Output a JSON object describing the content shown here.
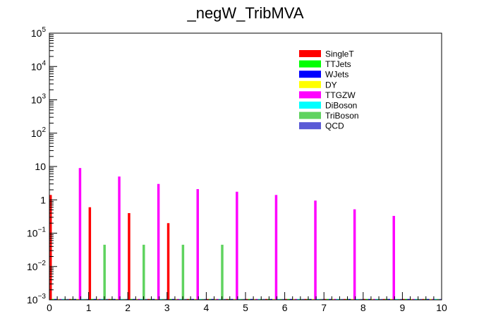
{
  "chart_data": {
    "type": "bar",
    "title": "_negW_TribMVA",
    "xlabel": "",
    "ylabel": "",
    "xlim": [
      0,
      10
    ],
    "ylim": [
      0.001,
      100000
    ],
    "yscale": "log",
    "grid": false,
    "legend_position": "top-right",
    "x_ticks": [
      "0",
      "1",
      "2",
      "3",
      "4",
      "5",
      "6",
      "7",
      "8",
      "9",
      "10"
    ],
    "y_ticks": [
      {
        "base": "10",
        "exp": "5",
        "value": 100000
      },
      {
        "base": "10",
        "exp": "4",
        "value": 10000
      },
      {
        "base": "10",
        "exp": "3",
        "value": 1000
      },
      {
        "base": "10",
        "exp": "2",
        "value": 100
      },
      {
        "base": "10",
        "exp": "",
        "value": 10
      },
      {
        "base": "1",
        "exp": "",
        "value": 1
      },
      {
        "base": "10",
        "exp": "−1",
        "value": 0.1
      },
      {
        "base": "10",
        "exp": "−2",
        "value": 0.01
      },
      {
        "base": "10",
        "exp": "−3",
        "value": 0.001
      }
    ],
    "bins": [
      0.0,
      0.5,
      1.0,
      1.5,
      2.0,
      2.5,
      3.0,
      3.5,
      4.0,
      4.5,
      5.0,
      5.5,
      6.0,
      6.5,
      7.0,
      7.5,
      8.0,
      8.5,
      9.0,
      9.5
    ],
    "series": [
      {
        "name": "SingleT",
        "color": "#ff0000",
        "values": [
          1.4,
          0,
          0.6,
          0,
          0.4,
          0,
          0.2,
          0,
          0,
          0,
          0,
          0,
          0,
          0,
          0,
          0,
          0,
          0,
          0,
          0
        ]
      },
      {
        "name": "TTJets",
        "color": "#00ff00",
        "values": [
          0,
          0,
          0,
          0,
          0,
          0,
          0,
          0,
          0,
          0,
          0,
          0,
          0,
          0,
          0,
          0,
          0,
          0,
          0,
          0
        ]
      },
      {
        "name": "WJets",
        "color": "#0000ff",
        "values": [
          0,
          0,
          0,
          0,
          0,
          0,
          0,
          0,
          0,
          0,
          0,
          0,
          0,
          0,
          0,
          0,
          0,
          0,
          0,
          0
        ]
      },
      {
        "name": "DY",
        "color": "#ffff00",
        "values": [
          0,
          0,
          0,
          0,
          0,
          0,
          0,
          0,
          0,
          0,
          0,
          0,
          0,
          0,
          0,
          0,
          0,
          0,
          0,
          0
        ]
      },
      {
        "name": "TTGZW",
        "color": "#ff00ff",
        "values": [
          0,
          9,
          0,
          5,
          0,
          3,
          0,
          2.1,
          0,
          1.75,
          0,
          1.4,
          0,
          0.95,
          0,
          0.52,
          0,
          0.33,
          0,
          0
        ]
      },
      {
        "name": "DiBoson",
        "color": "#00ffff",
        "values": [
          0,
          0,
          0,
          0,
          0,
          0,
          0,
          0,
          0,
          0,
          0,
          0,
          0,
          0,
          0,
          0,
          0,
          0,
          0,
          0
        ]
      },
      {
        "name": "TriBoson",
        "color": "#5fd35f",
        "values": [
          0,
          0,
          0.045,
          0,
          0.045,
          0,
          0.045,
          0,
          0.045,
          0,
          0,
          0,
          0,
          0,
          0,
          0,
          0,
          0,
          0,
          0
        ]
      },
      {
        "name": "QCD",
        "color": "#5a5ad6",
        "values": [
          0,
          0,
          0,
          0,
          0,
          0,
          0,
          0,
          0,
          0,
          0,
          0,
          0,
          0,
          0,
          0,
          0,
          0,
          0,
          0
        ]
      }
    ]
  }
}
